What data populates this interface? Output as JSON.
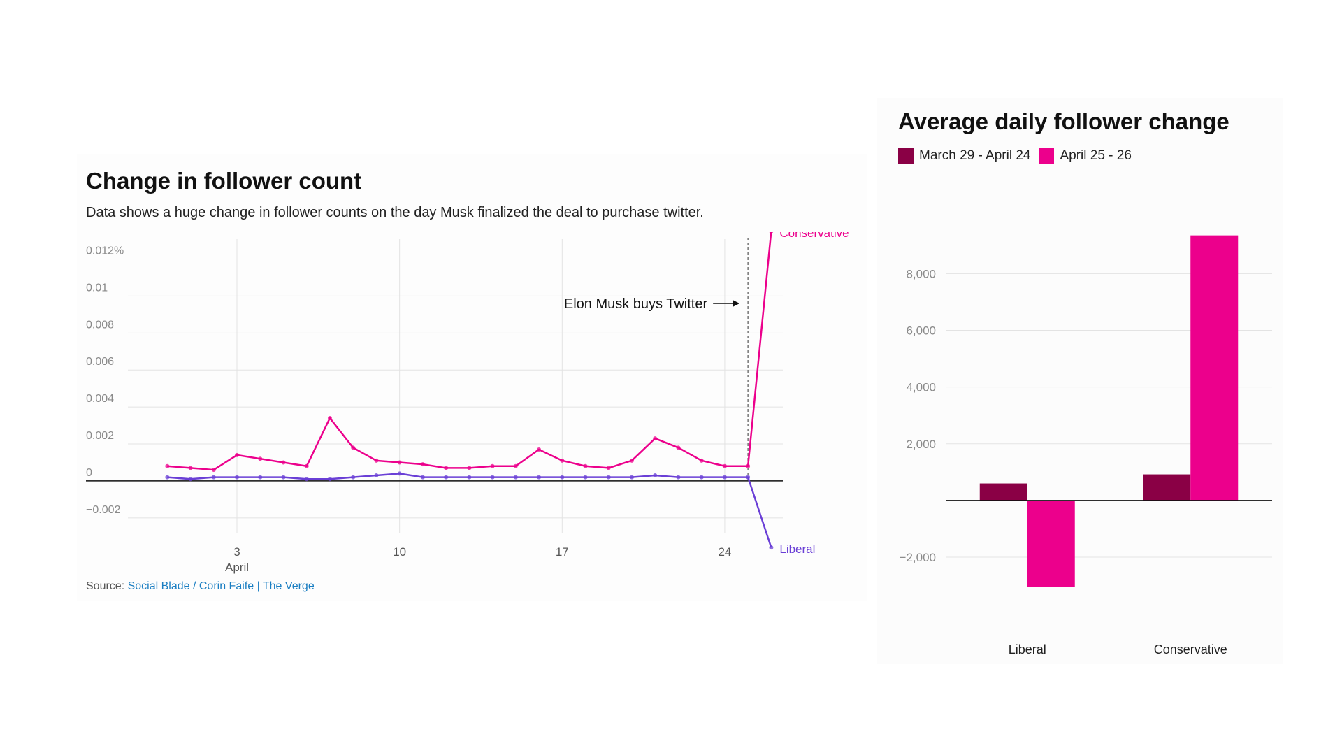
{
  "colors": {
    "conservative": "#ec008c",
    "liberal": "#6a3fd6",
    "before": "#8a0045",
    "after": "#ec008c",
    "grid": "#e3e3e3",
    "axis": "#111111",
    "tick": "#8a8a8a",
    "link": "#1a7ec2"
  },
  "left": {
    "title": "Change in follower count",
    "subtitle": "Data shows a huge change in follower counts on the day Musk finalized the deal to purchase twitter.",
    "source_label": "Source:",
    "source_link": "Social Blade / Corin Faife | The Verge",
    "annotation": "Elon Musk buys Twitter"
  },
  "right": {
    "title": "Average daily follower change"
  },
  "chart_data": [
    {
      "type": "line",
      "title": "Change in follower count",
      "x_ticks": [
        {
          "x": 3,
          "label": "3",
          "sublabel": "April"
        },
        {
          "x": 10,
          "label": "10",
          "sublabel": ""
        },
        {
          "x": 17,
          "label": "17",
          "sublabel": ""
        },
        {
          "x": 24,
          "label": "24",
          "sublabel": ""
        }
      ],
      "y_ticks": [
        {
          "value": 0.012,
          "label": "0.012%"
        },
        {
          "value": 0.01,
          "label": "0.01"
        },
        {
          "value": 0.008,
          "label": "0.008"
        },
        {
          "value": 0.006,
          "label": "0.006"
        },
        {
          "value": 0.004,
          "label": "0.004"
        },
        {
          "value": 0.002,
          "label": "0.002"
        },
        {
          "value": 0,
          "label": "0"
        },
        {
          "value": -0.002,
          "label": "−0.002"
        }
      ],
      "xlim": [
        -3.5,
        26.5
      ],
      "ylim": [
        -0.0028,
        0.0127
      ],
      "event_x": 25,
      "x": [
        0,
        1,
        2,
        3,
        4,
        5,
        6,
        7,
        8,
        9,
        10,
        11,
        12,
        13,
        14,
        15,
        16,
        17,
        18,
        19,
        20,
        21,
        22,
        23,
        24,
        25,
        26
      ],
      "series": [
        {
          "name": "Conservative",
          "color_key": "conservative",
          "values": [
            0.0008,
            0.0007,
            0.0006,
            0.0014,
            0.0012,
            0.001,
            0.0008,
            0.0034,
            0.0018,
            0.0011,
            0.001,
            0.0009,
            0.0007,
            0.0007,
            0.0008,
            0.0008,
            0.0017,
            0.0011,
            0.0008,
            0.0007,
            0.0011,
            0.0023,
            0.0018,
            0.0011,
            0.0008,
            0.0008,
            0.0135
          ]
        },
        {
          "name": "Liberal",
          "color_key": "liberal",
          "values": [
            0.0002,
            0.0001,
            0.0002,
            0.0002,
            0.0002,
            0.0002,
            0.0001,
            0.0001,
            0.0002,
            0.0003,
            0.0004,
            0.0002,
            0.0002,
            0.0002,
            0.0002,
            0.0002,
            0.0002,
            0.0002,
            0.0002,
            0.0002,
            0.0002,
            0.0003,
            0.0002,
            0.0002,
            0.0002,
            0.0002,
            -0.0036
          ]
        }
      ]
    },
    {
      "type": "bar",
      "title": "Average daily follower change",
      "categories": [
        "Liberal",
        "Conservative"
      ],
      "series": [
        {
          "name": "March 29 - April 24",
          "color_key": "before",
          "values": [
            600,
            920
          ]
        },
        {
          "name": "April 25 - 26",
          "color_key": "after",
          "values": [
            -3050,
            9350
          ]
        }
      ],
      "y_ticks": [
        {
          "value": 8000,
          "label": "8,000"
        },
        {
          "value": 6000,
          "label": "6,000"
        },
        {
          "value": 4000,
          "label": "4,000"
        },
        {
          "value": 2000,
          "label": "2,000"
        },
        {
          "value": -2000,
          "label": "−2,000"
        }
      ],
      "ylim": [
        -3800,
        10500
      ],
      "legend_position": "top-left"
    }
  ]
}
